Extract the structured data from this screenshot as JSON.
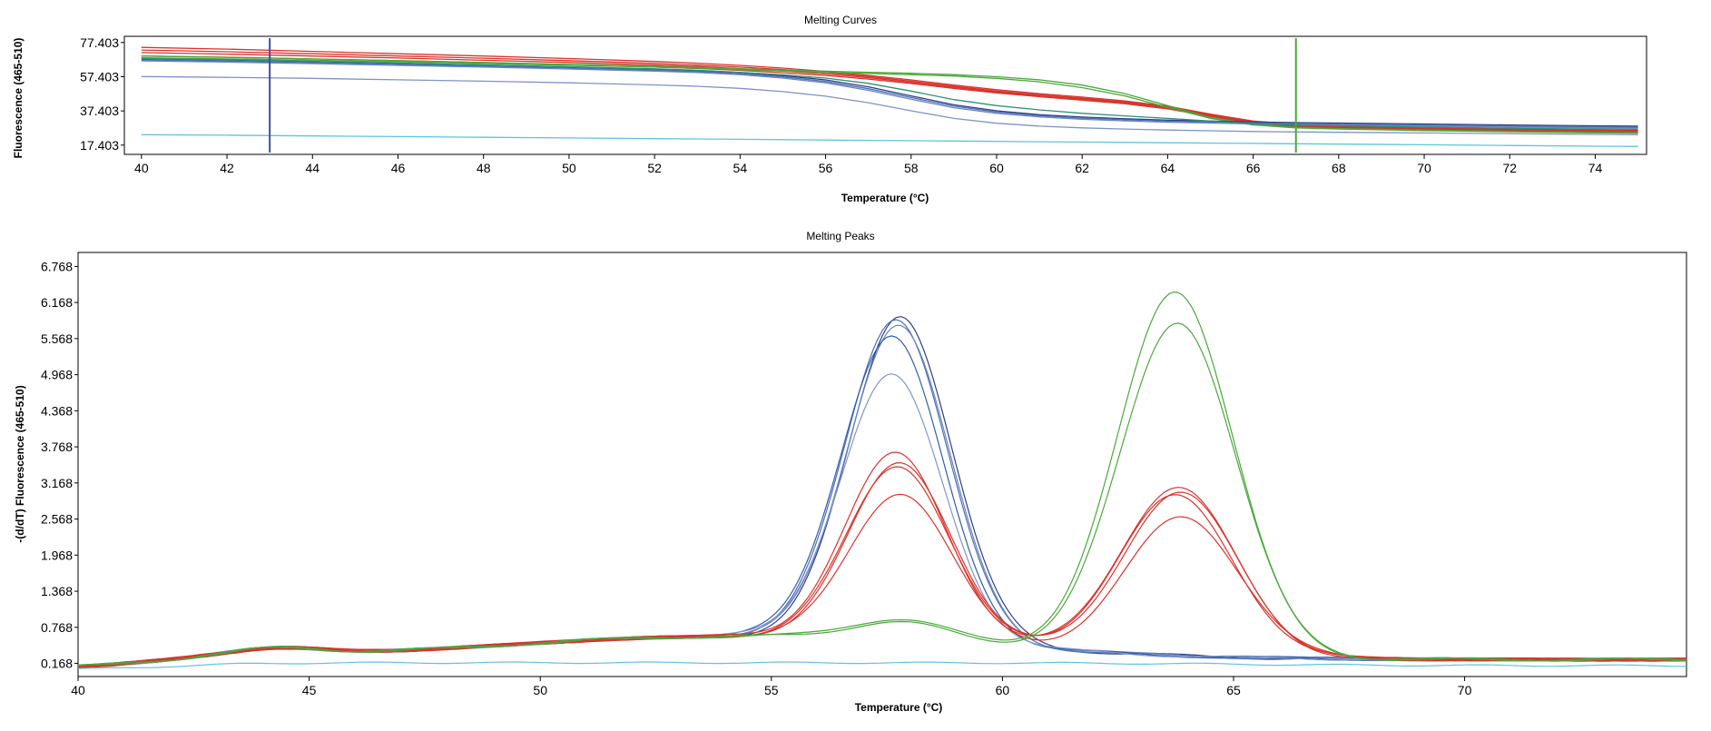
{
  "chart_data": [
    {
      "type": "line",
      "title": "Melting Curves",
      "xlabel": "Temperature (°C)",
      "ylabel": "Fluorescence (465-510)",
      "xlim": [
        39.6,
        75.2
      ],
      "ylim": [
        12,
        81
      ],
      "x_ticks": [
        40,
        42,
        44,
        46,
        48,
        50,
        52,
        54,
        56,
        58,
        60,
        62,
        64,
        66,
        68,
        70,
        72,
        74
      ],
      "y_ticks": [
        17.403,
        37.403,
        57.403,
        77.403
      ],
      "x_tick_labels": [
        "40",
        "42",
        "44",
        "46",
        "48",
        "50",
        "52",
        "54",
        "56",
        "58",
        "60",
        "62",
        "64",
        "66",
        "68",
        "70",
        "72",
        "74"
      ],
      "y_tick_labels": [
        "17.403",
        "37.403",
        "57.403",
        "77.403"
      ],
      "markers": [
        {
          "x": 43.0,
          "color": "#3d4f9c"
        },
        {
          "x": 67.0,
          "color": "#4aa83a"
        }
      ],
      "grid": false,
      "legend": "none",
      "x": [
        40,
        42,
        44,
        46,
        48,
        50,
        52,
        53,
        54,
        55,
        56,
        57,
        58,
        59,
        60,
        61,
        62,
        63,
        64,
        65,
        66,
        67,
        68,
        70,
        72,
        74,
        75
      ],
      "series": [
        {
          "color": "#d9332b",
          "values": [
            74.5,
            73.5,
            72.2,
            70.8,
            69.5,
            68,
            66.3,
            65.3,
            64,
            62.4,
            60.5,
            58.2,
            55.5,
            52.5,
            49.8,
            47.5,
            45.5,
            43.2,
            40.2,
            35.5,
            31.5,
            29.5,
            28.5,
            27.5,
            26.8,
            26.2,
            26
          ]
        },
        {
          "color": "#d9332b",
          "values": [
            73,
            72,
            70.8,
            69.5,
            68.2,
            66.8,
            65.2,
            64.2,
            63,
            61.5,
            59.8,
            57.5,
            54.8,
            51.8,
            49,
            46.8,
            44.8,
            42.6,
            39.6,
            35,
            31,
            29,
            28,
            27,
            26.3,
            25.7,
            25.5
          ]
        },
        {
          "color": "#d9332b",
          "values": [
            71.5,
            70.6,
            69.5,
            68.3,
            67,
            65.7,
            64.2,
            63.3,
            62.1,
            60.7,
            59,
            56.8,
            54.1,
            51.2,
            48.4,
            46.2,
            44.2,
            42,
            39,
            34.5,
            30.5,
            28.6,
            27.6,
            26.6,
            25.9,
            25.3,
            25.1
          ]
        },
        {
          "color": "#d9332b",
          "values": [
            69.5,
            68.8,
            67.8,
            66.8,
            65.6,
            64.4,
            63,
            62.2,
            61.1,
            59.7,
            58.1,
            56,
            53.4,
            50.6,
            47.9,
            45.7,
            43.7,
            41.6,
            38.6,
            34.2,
            30.2,
            28.3,
            27.3,
            26.3,
            25.6,
            25,
            24.8
          ]
        },
        {
          "color": "#4aa83a",
          "values": [
            69.5,
            68.7,
            67.8,
            66.8,
            65.7,
            64.6,
            63.5,
            62.8,
            62,
            61.2,
            60.6,
            60,
            59.4,
            58.6,
            57.4,
            55.6,
            52.5,
            47.5,
            40.5,
            33.5,
            29.5,
            27.8,
            27.1,
            26.2,
            25.5,
            24.9,
            24.7
          ]
        },
        {
          "color": "#4aa83a",
          "values": [
            68.5,
            67.8,
            67,
            66.1,
            65.1,
            64.1,
            63,
            62.3,
            61.5,
            60.7,
            60,
            59.3,
            58.6,
            57.8,
            56.4,
            54.4,
            51,
            46.2,
            39.5,
            33,
            29.2,
            27.5,
            26.8,
            25.9,
            25.2,
            24.6,
            24.4
          ]
        },
        {
          "color": "#2e3f86",
          "values": [
            67.8,
            67.1,
            66.2,
            65.2,
            64.2,
            63.1,
            61.8,
            61,
            59.8,
            58,
            55.5,
            51.5,
            46.2,
            41,
            37.5,
            35.2,
            33.8,
            32.8,
            32,
            31.5,
            31,
            30.6,
            30.3,
            29.8,
            29.2,
            28.7,
            28.5
          ]
        },
        {
          "color": "#4f6fb5",
          "values": [
            67.2,
            66.5,
            65.6,
            64.6,
            63.6,
            62.5,
            61.2,
            60.4,
            59.2,
            57.3,
            54.6,
            50.4,
            45.2,
            40.2,
            36.8,
            34.6,
            33.2,
            32.2,
            31.4,
            30.9,
            30.4,
            30,
            29.7,
            29.2,
            28.6,
            28.1,
            27.9
          ]
        },
        {
          "color": "#6a84c2",
          "values": [
            66.6,
            65.9,
            65,
            64,
            63,
            61.9,
            60.6,
            59.8,
            58.6,
            56.6,
            53.8,
            49.4,
            44.2,
            39.3,
            36,
            33.9,
            32.5,
            31.6,
            30.8,
            30.3,
            29.8,
            29.4,
            29.1,
            28.6,
            28,
            27.5,
            27.3
          ]
        },
        {
          "color": "#7f93c8",
          "values": [
            57.5,
            57,
            56.4,
            55.6,
            54.8,
            53.8,
            52.6,
            51.8,
            50.6,
            48.7,
            46,
            42.2,
            37.5,
            33,
            30.2,
            28.5,
            27.5,
            26.8,
            26.2,
            25.8,
            25.4,
            25.1,
            24.9,
            24.5,
            24.1,
            23.7,
            23.5
          ]
        },
        {
          "color": "#2f8f7a",
          "values": [
            68,
            67.3,
            66.4,
            65.4,
            64.3,
            63.2,
            62,
            61.2,
            60,
            58.5,
            56.6,
            53.5,
            49,
            44,
            40.5,
            38,
            36,
            34.5,
            33,
            31.5,
            30,
            29.2,
            28.7,
            28,
            27.3,
            26.8,
            26.6
          ]
        },
        {
          "color": "#5fc4dc",
          "values": [
            23.5,
            23.2,
            22.8,
            22.4,
            22,
            21.6,
            21.2,
            21,
            20.8,
            20.6,
            20.4,
            20.2,
            20,
            19.8,
            19.6,
            19.4,
            19.2,
            19,
            18.8,
            18.6,
            18.4,
            18.2,
            18,
            17.6,
            17.2,
            16.8,
            16.6
          ]
        }
      ]
    },
    {
      "type": "line",
      "title": "Melting Peaks",
      "xlabel": "Temperature (°C)",
      "ylabel": "-(d/dT) Fluorescence (465-510)",
      "xlim": [
        40,
        74.8
      ],
      "ylim": [
        -0.05,
        7.0
      ],
      "x_ticks": [
        40,
        45,
        50,
        55,
        60,
        65,
        70
      ],
      "y_ticks": [
        0.168,
        0.768,
        1.368,
        1.968,
        2.568,
        3.168,
        3.768,
        4.368,
        4.968,
        5.568,
        6.168,
        6.768
      ],
      "x_tick_labels": [
        "40",
        "45",
        "50",
        "55",
        "60",
        "65",
        "70"
      ],
      "y_tick_labels": [
        "0.168",
        "0.768",
        "1.368",
        "1.968",
        "2.568",
        "3.168",
        "3.768",
        "4.368",
        "4.968",
        "5.568",
        "6.168",
        "6.768"
      ],
      "grid": false,
      "legend": "none",
      "series": [
        {
          "color": "#2e3f86",
          "peak_amps": [
            5.4,
            0
          ],
          "peak_x": [
            57.8,
            63.8
          ]
        },
        {
          "color": "#4f6fb5",
          "peak_amps": [
            5.35,
            0
          ],
          "peak_x": [
            57.7,
            63.8
          ]
        },
        {
          "color": "#6a84c2",
          "peak_amps": [
            5.25,
            0
          ],
          "peak_x": [
            57.75,
            63.8
          ]
        },
        {
          "color": "#2f5fa8",
          "peak_amps": [
            5.05,
            0
          ],
          "peak_x": [
            57.6,
            63.8
          ]
        },
        {
          "color": "#8095c9",
          "peak_amps": [
            4.4,
            0
          ],
          "peak_x": [
            57.6,
            63.8
          ]
        },
        {
          "color": "#d9332b",
          "peak_amps": [
            3.1,
            2.8
          ],
          "peak_x": [
            57.7,
            63.8
          ]
        },
        {
          "color": "#d9332b",
          "peak_amps": [
            2.95,
            2.7
          ],
          "peak_x": [
            57.8,
            63.85
          ]
        },
        {
          "color": "#d9332b",
          "peak_amps": [
            2.9,
            2.65
          ],
          "peak_x": [
            57.75,
            63.75
          ]
        },
        {
          "color": "#d9332b",
          "peak_amps": [
            2.45,
            2.3
          ],
          "peak_x": [
            57.8,
            63.9
          ]
        },
        {
          "color": "#4aa83a",
          "peak_amps": [
            0.35,
            6.05
          ],
          "peak_x": [
            57.8,
            63.75
          ]
        },
        {
          "color": "#4aa83a",
          "peak_amps": [
            0.3,
            5.55
          ],
          "peak_x": [
            57.8,
            63.8
          ]
        },
        {
          "color": "#5fc4dc",
          "peak_amps": [
            0,
            0
          ],
          "peak_x": [
            57.8,
            63.8
          ]
        }
      ]
    }
  ]
}
